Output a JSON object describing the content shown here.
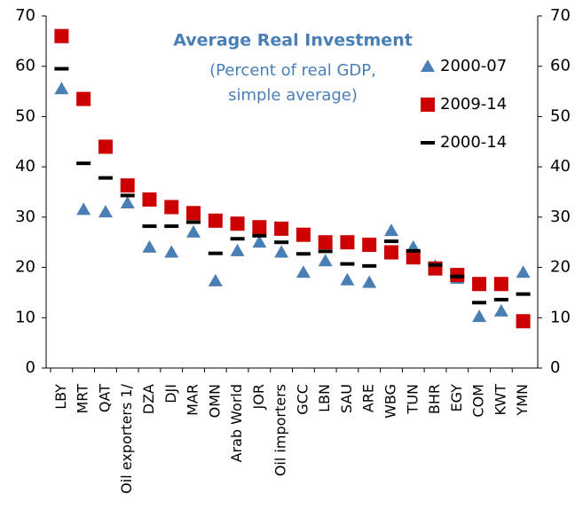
{
  "chart_data": {
    "type": "dot",
    "title": "Average Real Investment",
    "subtitle": [
      "(Percent of real GDP,",
      "simple average)"
    ],
    "categories": [
      "LBY",
      "MRT",
      "QAT",
      "Oil exporters  1/",
      "DZA",
      "DJI",
      "MAR",
      "OMN",
      "Arab World",
      "JOR",
      "Oil importers",
      "GCC",
      "LBN",
      "SAU",
      "ARE",
      "WBG",
      "TUN",
      "BHR",
      "EGY",
      "COM",
      "KWT",
      "YMN"
    ],
    "series": [
      {
        "name": "2000-07",
        "color": "#4a7fb5",
        "marker": "triangle",
        "values": [
          55.5,
          31.5,
          31,
          32.8,
          24,
          23,
          27,
          17.3,
          23.3,
          25,
          23,
          19,
          21.3,
          17.5,
          17,
          27.3,
          24,
          20.2,
          17.8,
          10.2,
          11.3,
          19
        ]
      },
      {
        "name": "2009-14",
        "color": "#cc0000",
        "marker": "square",
        "values": [
          66,
          53.5,
          44,
          36.3,
          33.5,
          32,
          30.8,
          29.3,
          28.7,
          28,
          27.7,
          26.5,
          25,
          25,
          24.5,
          23,
          22,
          19.8,
          18.5,
          16.7,
          16.7,
          9.3
        ]
      },
      {
        "name": "2000-14",
        "color": "#000000",
        "marker": "dash",
        "values": [
          59.5,
          40.7,
          37.8,
          34.3,
          28.2,
          28.2,
          29,
          22.8,
          25.7,
          26.3,
          25,
          22.7,
          23.2,
          20.7,
          20.3,
          25.2,
          23.3,
          20.5,
          18.2,
          13,
          13.6,
          14.7
        ]
      }
    ],
    "ylim": [
      0,
      70
    ],
    "yticks": [
      0,
      10,
      20,
      30,
      40,
      50,
      60,
      70
    ],
    "y2lim": [
      0,
      70
    ],
    "y2ticks": [
      0,
      10,
      20,
      30,
      40,
      50,
      60,
      70
    ],
    "legend": "right"
  }
}
